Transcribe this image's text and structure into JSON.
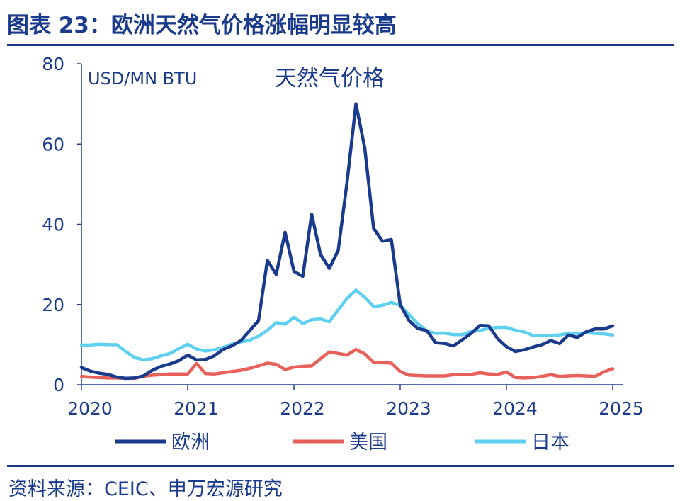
{
  "title": "图表 23：欧洲天然气价格涨幅明显较高",
  "source": "资料来源：CEIC、申万宏源研究",
  "chart_data": {
    "type": "line",
    "title": "天然气价格",
    "ylabel": "USD/MN BTU",
    "xlabel": "",
    "ylim": [
      0,
      80
    ],
    "yticks": [
      0,
      20,
      40,
      60,
      80
    ],
    "xlim": [
      2020,
      2025
    ],
    "xticks": [
      2020,
      2021,
      2022,
      2023,
      2024,
      2025
    ],
    "x": [
      2020.0,
      2020.083,
      2020.167,
      2020.25,
      2020.333,
      2020.417,
      2020.5,
      2020.583,
      2020.667,
      2020.75,
      2020.833,
      2020.917,
      2021.0,
      2021.083,
      2021.167,
      2021.25,
      2021.333,
      2021.417,
      2021.5,
      2021.583,
      2021.667,
      2021.75,
      2021.833,
      2021.917,
      2022.0,
      2022.083,
      2022.167,
      2022.25,
      2022.333,
      2022.417,
      2022.5,
      2022.583,
      2022.667,
      2022.75,
      2022.833,
      2022.917,
      2023.0,
      2023.083,
      2023.167,
      2023.25,
      2023.333,
      2023.417,
      2023.5,
      2023.583,
      2023.667,
      2023.75,
      2023.833,
      2023.917,
      2024.0,
      2024.083,
      2024.167,
      2024.25,
      2024.333,
      2024.417,
      2024.5,
      2024.583,
      2024.667,
      2024.75,
      2024.833,
      2024.917,
      2025.0
    ],
    "series": [
      {
        "name": "欧洲",
        "color": "#1a3a8c",
        "values": [
          4.3,
          3.4,
          2.9,
          2.6,
          1.9,
          1.6,
          1.7,
          2.2,
          3.6,
          4.6,
          5.2,
          6.0,
          7.4,
          6.2,
          6.3,
          7.2,
          8.8,
          9.7,
          11.0,
          13.5,
          16.0,
          31.0,
          27.5,
          38.0,
          28.3,
          27.0,
          42.5,
          32.5,
          29.0,
          33.5,
          50.5,
          70.0,
          59.0,
          39.0,
          35.8,
          36.2,
          20.0,
          16.0,
          14.0,
          13.5,
          10.5,
          10.3,
          9.7,
          11.2,
          12.8,
          14.8,
          14.7,
          11.5,
          9.5,
          8.3,
          8.7,
          9.4,
          10.0,
          11.0,
          10.3,
          12.4,
          11.8,
          13.2,
          13.9,
          13.9,
          14.7
        ]
      },
      {
        "name": "美国",
        "color": "#e8605a",
        "values": [
          2.1,
          1.9,
          1.8,
          1.7,
          1.7,
          1.6,
          1.6,
          2.1,
          2.4,
          2.5,
          2.7,
          2.7,
          2.7,
          5.3,
          2.8,
          2.7,
          3.0,
          3.3,
          3.6,
          4.1,
          4.7,
          5.4,
          5.1,
          3.8,
          4.4,
          4.6,
          4.7,
          6.5,
          8.2,
          7.8,
          7.4,
          8.8,
          7.7,
          5.6,
          5.5,
          5.4,
          3.3,
          2.4,
          2.3,
          2.2,
          2.2,
          2.2,
          2.5,
          2.6,
          2.6,
          3.0,
          2.7,
          2.6,
          3.2,
          1.8,
          1.7,
          1.8,
          2.1,
          2.5,
          2.1,
          2.2,
          2.3,
          2.2,
          2.1,
          3.2,
          4.0
        ]
      },
      {
        "name": "日本",
        "color": "#5fd0f0",
        "values": [
          9.9,
          9.9,
          10.1,
          10.0,
          10.0,
          8.3,
          6.8,
          6.2,
          6.5,
          7.2,
          7.8,
          9.0,
          10.1,
          8.9,
          8.4,
          8.7,
          9.3,
          10.1,
          10.7,
          11.1,
          12.1,
          13.6,
          15.5,
          15.1,
          16.8,
          15.3,
          16.2,
          16.4,
          15.7,
          18.7,
          21.5,
          23.6,
          21.8,
          19.5,
          19.8,
          20.5,
          19.8,
          17.5,
          15.2,
          13.4,
          12.8,
          12.9,
          12.5,
          12.5,
          13.3,
          13.5,
          14.1,
          14.3,
          14.3,
          13.6,
          13.2,
          12.3,
          12.2,
          12.3,
          12.4,
          12.9,
          12.8,
          13.0,
          12.8,
          12.7,
          12.4
        ]
      }
    ],
    "legend": "bottom"
  }
}
